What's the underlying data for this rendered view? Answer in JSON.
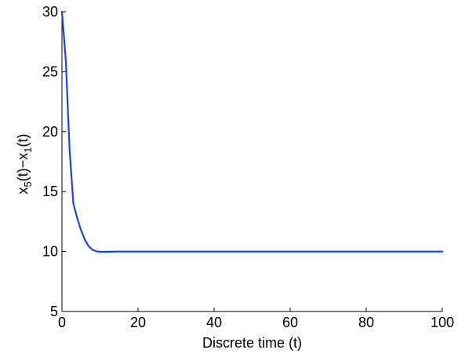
{
  "chart_data": {
    "type": "line",
    "title": "",
    "xlabel": "Discrete time (t)",
    "ylabel": {
      "parts": [
        {
          "text": "x",
          "sub": false
        },
        {
          "text": "5",
          "sub": true
        },
        {
          "text": "(t)−x",
          "sub": false
        },
        {
          "text": "1",
          "sub": true
        },
        {
          "text": "(t)",
          "sub": false
        }
      ]
    },
    "xlim": [
      0,
      100
    ],
    "ylim": [
      5,
      30
    ],
    "xticks": [
      0,
      20,
      40,
      60,
      80,
      100
    ],
    "yticks": [
      5,
      10,
      15,
      20,
      25,
      30
    ],
    "grid": false,
    "legend": "none",
    "series": [
      {
        "color": "#1a45e6",
        "x": [
          0,
          1,
          2,
          3,
          4,
          5,
          6,
          7,
          8,
          9,
          10,
          12,
          15,
          20,
          30,
          40,
          50,
          60,
          70,
          80,
          90,
          100
        ],
        "y": [
          30,
          26,
          18.5,
          14,
          12.8,
          11.8,
          11.0,
          10.45,
          10.15,
          10.02,
          9.98,
          9.98,
          10.0,
          10.0,
          10.0,
          10.0,
          10.0,
          10.0,
          10.0,
          10.0,
          10.0,
          10.0
        ]
      }
    ]
  }
}
